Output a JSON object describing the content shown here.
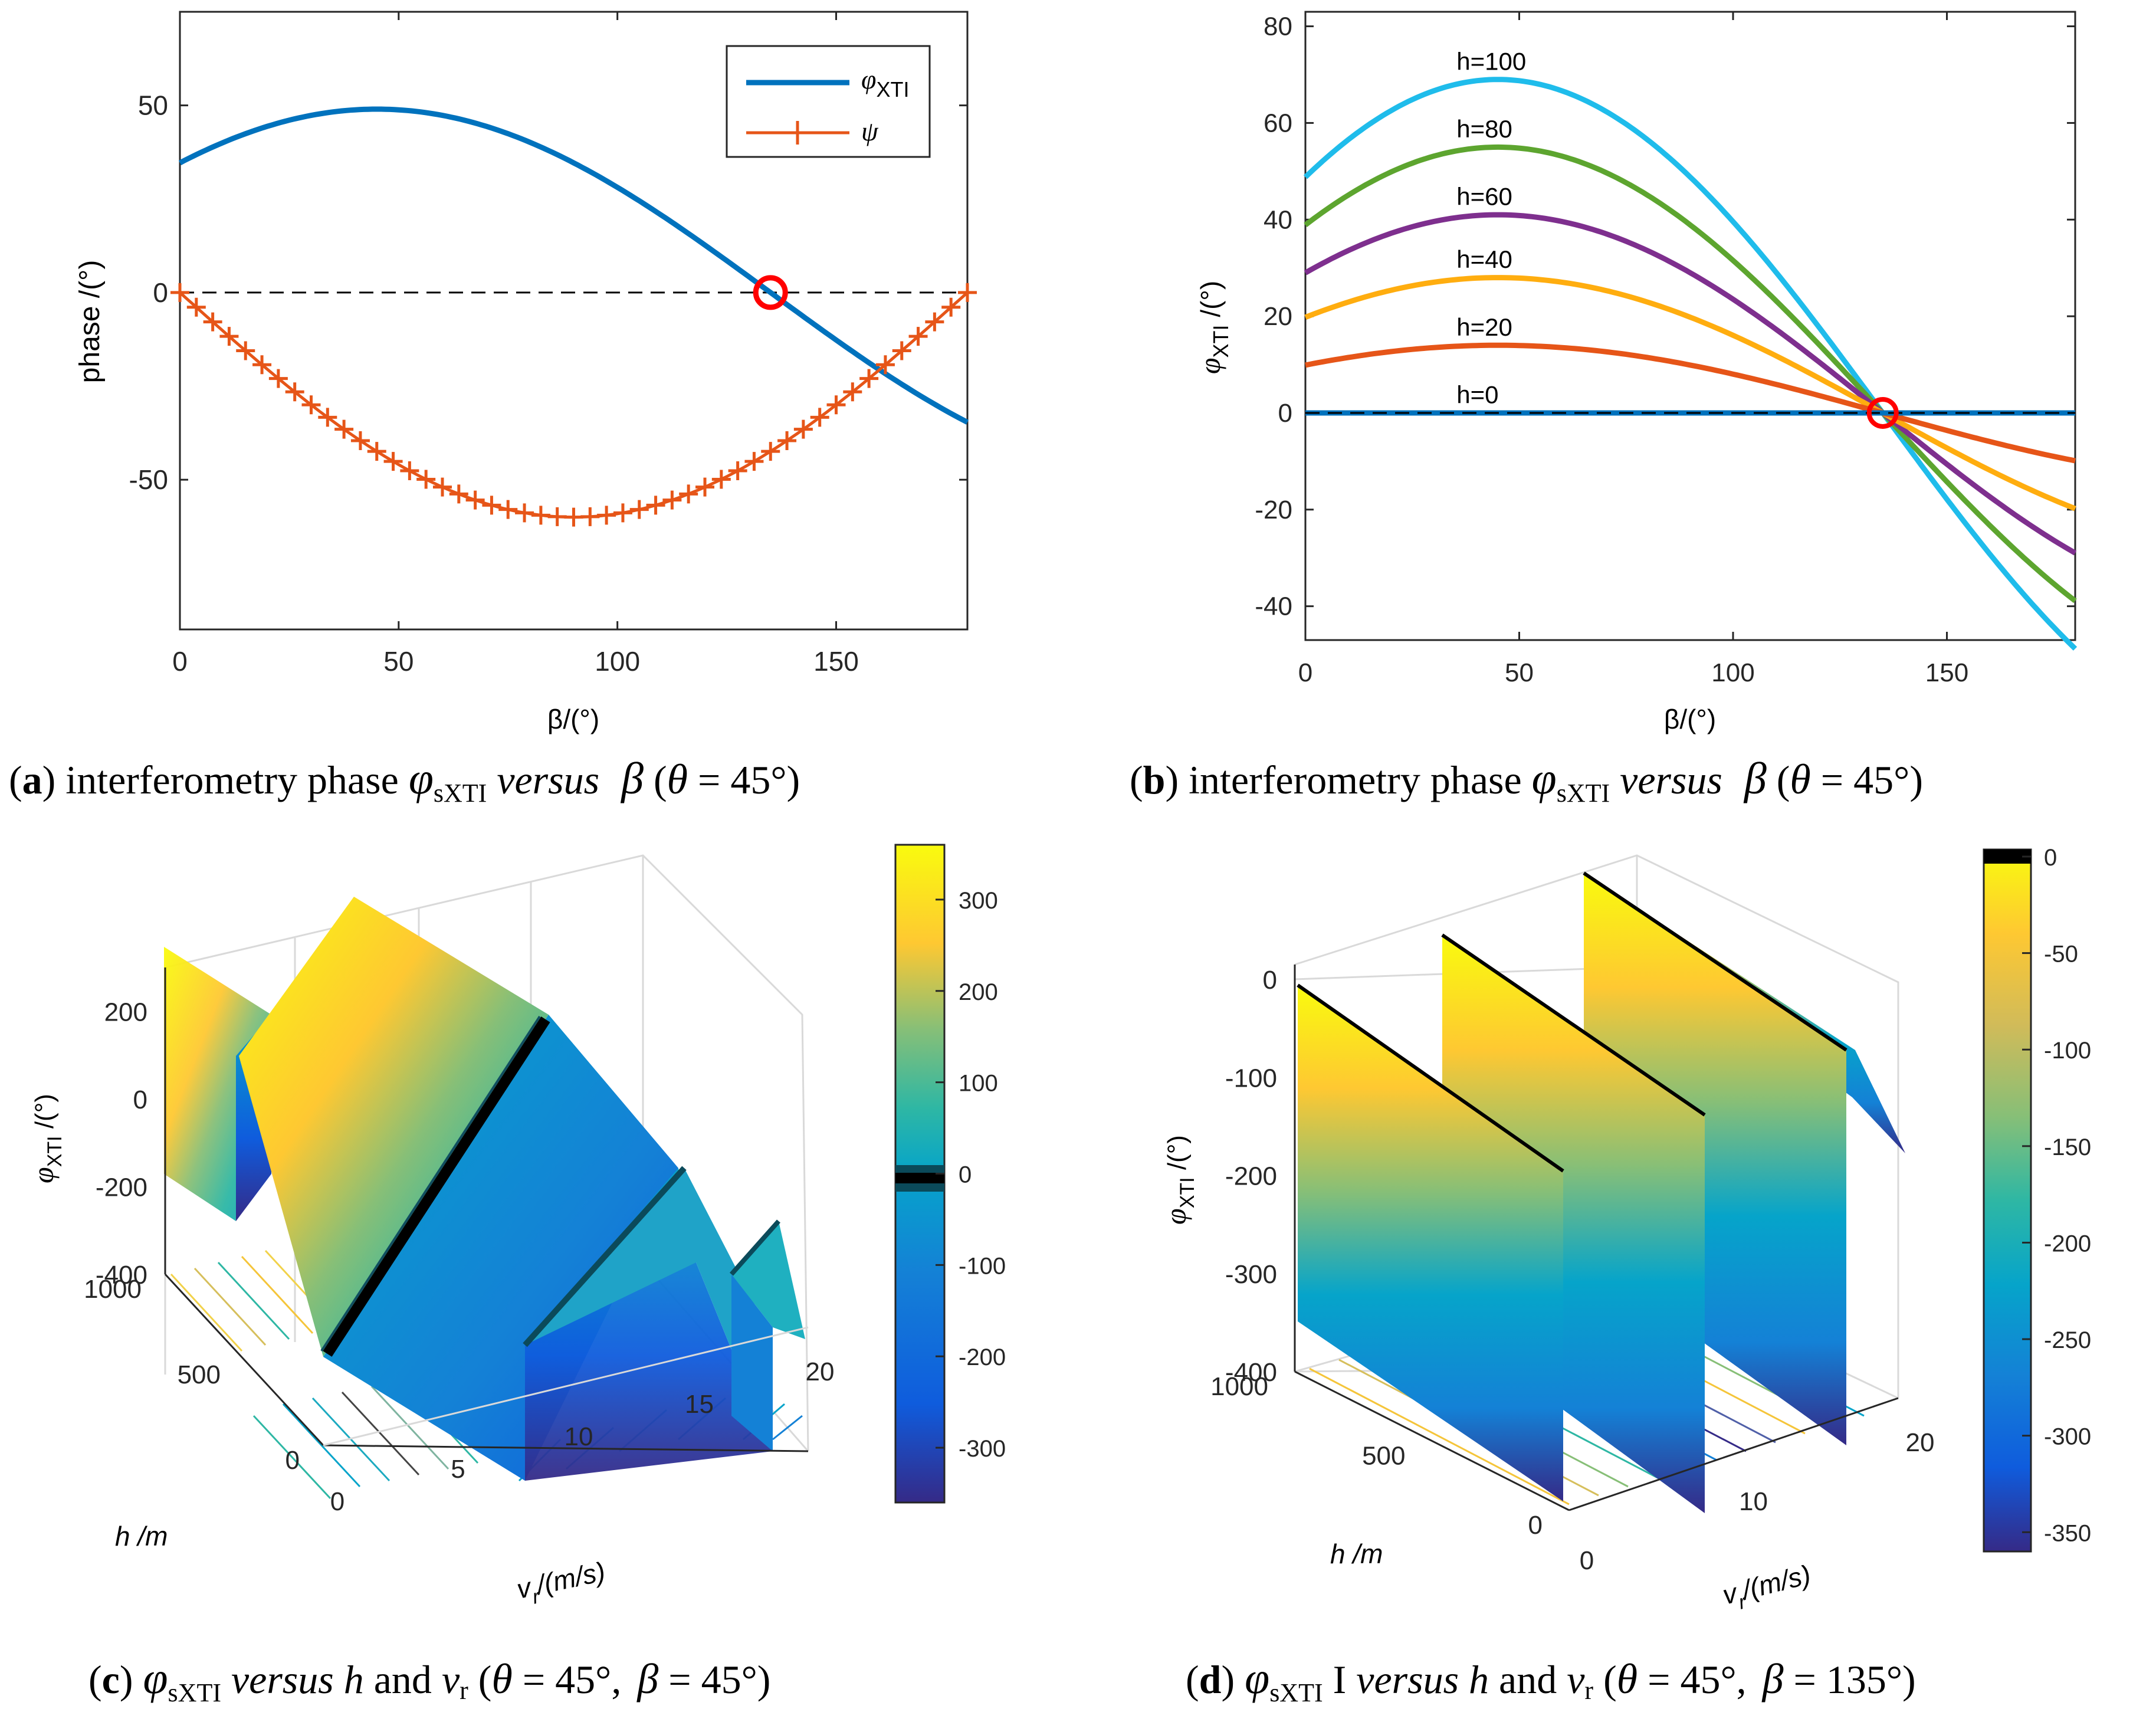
{
  "chart_data": [
    {
      "id": "a",
      "type": "line",
      "title": "",
      "xlabel": "β/(°)",
      "ylabel": "phase /(°)",
      "xlim": [
        0,
        180
      ],
      "ylim": [
        -90,
        75
      ],
      "xticks": [
        0,
        50,
        100,
        150
      ],
      "yticks": [
        -50,
        0,
        50
      ],
      "legend": {
        "position": "top-right"
      },
      "zero_line": true,
      "series": [
        {
          "name": "φXTI",
          "legend_main": "φ",
          "legend_sub": "XTI",
          "color": "#0072BD",
          "style": "solid",
          "formula": "49*sin(beta+45°)",
          "amplitude": 49,
          "offset_deg": 45
        },
        {
          "name": "ψ",
          "legend_main": "ψ",
          "color": "#E65518",
          "style": "plus-markers",
          "formula": "-60*sin(beta)",
          "amplitude": 60,
          "markers_every_deg": 3.75
        }
      ],
      "annotation": {
        "type": "circle",
        "x": 135,
        "y": 0,
        "color": "#FF0000"
      },
      "caption": {
        "prefix": "(",
        "letter": "a",
        "suffix": ") interferometry phase ",
        "phi": "φ",
        "phi_sub": "sXTI",
        "versus": " versus ",
        "beta": "β",
        "theta_open": " (",
        "theta": "θ",
        "theta_rest": " = 45°)"
      }
    },
    {
      "id": "b",
      "type": "line",
      "xlabel": "β/(°)",
      "ylabel_main": "φ",
      "ylabel_sub": "XTI",
      "ylabel_rest": " /(°)",
      "xlim": [
        0,
        180
      ],
      "ylim": [
        -47,
        83
      ],
      "xticks": [
        0,
        50,
        100,
        150
      ],
      "yticks": [
        -40,
        -20,
        0,
        20,
        40,
        60,
        80
      ],
      "zero_line": true,
      "series": [
        {
          "name": "h=0",
          "amplitude": 0,
          "color": "#0072BD",
          "label_x": 45,
          "label_y": 2
        },
        {
          "name": "h=20",
          "amplitude": 14,
          "color": "#E65518",
          "label_x": 45,
          "label_y": 16
        },
        {
          "name": "h=40",
          "amplitude": 28,
          "color": "#FFAD0F",
          "label_x": 45,
          "label_y": 30
        },
        {
          "name": "h=60",
          "amplitude": 41,
          "color": "#7E2F8E",
          "label_x": 45,
          "label_y": 43
        },
        {
          "name": "h=80",
          "amplitude": 55,
          "color": "#5DA52F",
          "label_x": 45,
          "label_y": 57
        },
        {
          "name": "h=100",
          "amplitude": 69,
          "color": "#1FBCEB",
          "label_x": 45,
          "label_y": 71
        }
      ],
      "formula": "A*sin(beta+45°)",
      "annotation": {
        "type": "circle",
        "x": 135,
        "y": 0,
        "color": "#FF0000"
      },
      "caption": {
        "prefix": "(",
        "letter": "b",
        "suffix": ") interferometry phase ",
        "phi": "φ",
        "phi_sub": "sXTI",
        "versus": " versus ",
        "beta": "β",
        "theta_open": " (",
        "theta": "θ",
        "theta_rest": " = 45°)"
      }
    },
    {
      "id": "c",
      "type": "surface3d",
      "xlabel_main": "v",
      "xlabel_sub": "r",
      "xlabel_rest": "/(m/s)",
      "ylabel": "h /m",
      "zlabel_main": "φ",
      "zlabel_sub": "XTI",
      "zlabel_rest": " /(°)",
      "xticks": [
        0,
        5,
        10,
        15,
        20
      ],
      "yticks": [
        0,
        500,
        1000
      ],
      "zticks": [
        -400,
        -200,
        0,
        200
      ],
      "colorbar": {
        "ticks": [
          300,
          200,
          100,
          0,
          -100,
          -200,
          -300
        ],
        "range": [
          -360,
          360
        ],
        "marker_value": 0
      },
      "caption": {
        "prefix": "(",
        "letter": "c",
        "suffix": ") ",
        "phi": "φ",
        "phi_sub": "sXTI",
        "versus": " versus ",
        "rest_a": "h",
        "rest_b": " and ",
        "vr": "v",
        "vr_sub": "r",
        "theta_open": " (",
        "theta": "θ",
        "theta_rest": " = 45°, ",
        "beta": "β",
        "beta_rest": " = 45°)"
      }
    },
    {
      "id": "d",
      "type": "surface3d",
      "xlabel_main": "v",
      "xlabel_sub": "r",
      "xlabel_rest": "/(m/s)",
      "ylabel": "h /m",
      "zlabel_main": "φ",
      "zlabel_sub": "XTI",
      "zlabel_rest": " /(°)",
      "xticks": [
        0,
        10,
        20
      ],
      "yticks": [
        0,
        500,
        1000
      ],
      "zticks": [
        -400,
        -300,
        -200,
        -100,
        0
      ],
      "colorbar": {
        "ticks": [
          0,
          -50,
          -100,
          -150,
          -200,
          -250,
          -300,
          -350
        ],
        "range": [
          -360,
          0
        ],
        "marker_value": 0
      },
      "caption": {
        "prefix": "(",
        "letter": "d",
        "suffix": ") ",
        "phi": "φ",
        "phi_sub": "sXTI",
        "mid": " I",
        "versus": " versus ",
        "rest_a": "h",
        "rest_b": " and ",
        "vr": "v",
        "vr_sub": "r",
        "theta_open": " (",
        "theta": "θ",
        "theta_rest": " = 45°, ",
        "beta": "β",
        "beta_rest": " = 135°)"
      }
    }
  ]
}
